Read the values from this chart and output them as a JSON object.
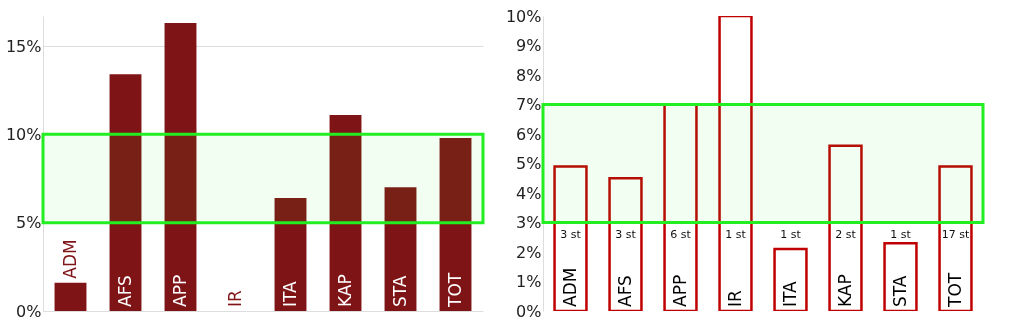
{
  "chart_data": [
    {
      "type": "bar",
      "categories": [
        "ADM",
        "AFS",
        "APP",
        "IR",
        "ITA",
        "KAP",
        "STA",
        "TOT"
      ],
      "series": [
        {
          "color": "#7f1416",
          "values": [
            1.6,
            13.4,
            16.3,
            0,
            6.4,
            11.1,
            7.0,
            9.8
          ]
        }
      ],
      "ylim": [
        0,
        16.7
      ],
      "yticks": [
        {
          "value": 0,
          "label": "0%"
        },
        {
          "value": 5,
          "label": "5%"
        },
        {
          "value": 10,
          "label": "10%"
        },
        {
          "value": 15,
          "label": "15%"
        }
      ],
      "grid": "y",
      "bands": [
        {
          "axis": "y",
          "from": 5,
          "to": 10,
          "color": "#22ee22"
        }
      ]
    },
    {
      "type": "bar",
      "categories": [
        "ADM",
        "AFS",
        "APP",
        "IR",
        "ITA",
        "KAP",
        "STA",
        "TOT"
      ],
      "series": [
        {
          "color": "#c00000",
          "values": [
            4.9,
            4.5,
            7.0,
            10,
            2.1,
            5.6,
            2.3,
            4.9
          ]
        }
      ],
      "ylim": [
        0,
        10
      ],
      "yticks": [
        {
          "value": 0,
          "label": "0%"
        },
        {
          "value": 1,
          "label": "1%"
        },
        {
          "value": 2,
          "label": "2%"
        },
        {
          "value": 3,
          "label": "3%"
        },
        {
          "value": 4,
          "label": "4%"
        },
        {
          "value": 5,
          "label": "5%"
        },
        {
          "value": 6,
          "label": "6%"
        },
        {
          "value": 7,
          "label": "7%"
        },
        {
          "value": 8,
          "label": "8%"
        },
        {
          "value": 9,
          "label": "9%"
        },
        {
          "value": 10,
          "label": "10%"
        }
      ],
      "grid": false,
      "bands": [
        {
          "axis": "y",
          "from": 3,
          "to": 7,
          "color": "#22ee22"
        }
      ],
      "annotations": [
        "3 st",
        "3 st",
        "6 st",
        "1 st",
        "1 st",
        "2 st",
        "1 st",
        "17 st"
      ]
    }
  ]
}
